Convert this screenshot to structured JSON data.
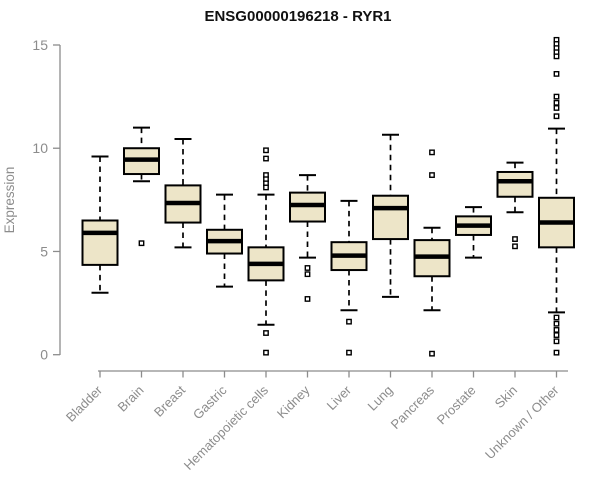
{
  "chart_data": {
    "type": "boxplot",
    "title": "ENSG00000196218 - RYR1",
    "ylabel": "Expression",
    "xlabel": "",
    "ylim": [
      0,
      15
    ],
    "yticks": [
      0,
      5,
      10,
      15
    ],
    "grid": false,
    "legend": "none",
    "colors": {
      "box_fill": "#ede5c8",
      "box_stroke": "#000000",
      "median": "#000000",
      "axis": "#8c8c8c",
      "title": "#111111"
    },
    "categories": [
      "Bladder",
      "Brain",
      "Breast",
      "Gastric",
      "Hematopoietic cells",
      "Kidney",
      "Liver",
      "Lung",
      "Pancreas",
      "Prostate",
      "Skin",
      "Unknown / Other"
    ],
    "boxes": [
      {
        "label": "Bladder",
        "low": 3.0,
        "q1": 4.35,
        "median": 5.9,
        "q3": 6.5,
        "high": 9.6,
        "outliers": []
      },
      {
        "label": "Brain",
        "low": 8.4,
        "q1": 8.75,
        "median": 9.45,
        "q3": 10.0,
        "high": 11.0,
        "outliers": [
          5.4
        ]
      },
      {
        "label": "Breast",
        "low": 5.2,
        "q1": 6.4,
        "median": 7.35,
        "q3": 8.2,
        "high": 10.45,
        "outliers": []
      },
      {
        "label": "Gastric",
        "low": 3.3,
        "q1": 4.9,
        "median": 5.5,
        "q3": 6.05,
        "high": 7.75,
        "outliers": []
      },
      {
        "label": "Hematopoietic cells",
        "low": 1.45,
        "q1": 3.6,
        "median": 4.4,
        "q3": 5.2,
        "high": 7.75,
        "outliers": [
          9.9,
          9.5,
          8.7,
          8.5,
          8.3,
          8.1,
          1.05,
          0.1
        ]
      },
      {
        "label": "Kidney",
        "low": 4.7,
        "q1": 6.45,
        "median": 7.25,
        "q3": 7.85,
        "high": 8.7,
        "outliers": [
          4.2,
          3.9,
          2.7
        ]
      },
      {
        "label": "Liver",
        "low": 2.15,
        "q1": 4.1,
        "median": 4.8,
        "q3": 5.45,
        "high": 7.45,
        "outliers": [
          1.6,
          0.1
        ]
      },
      {
        "label": "Lung",
        "low": 2.8,
        "q1": 5.6,
        "median": 7.1,
        "q3": 7.7,
        "high": 10.65,
        "outliers": []
      },
      {
        "label": "Pancreas",
        "low": 2.15,
        "q1": 3.8,
        "median": 4.75,
        "q3": 5.55,
        "high": 6.15,
        "outliers": [
          9.8,
          8.7,
          0.05
        ]
      },
      {
        "label": "Prostate",
        "low": 4.7,
        "q1": 5.8,
        "median": 6.25,
        "q3": 6.7,
        "high": 7.15,
        "outliers": []
      },
      {
        "label": "Skin",
        "low": 6.9,
        "q1": 7.65,
        "median": 8.4,
        "q3": 8.85,
        "high": 9.3,
        "outliers": [
          5.6,
          5.25
        ]
      },
      {
        "label": "Unknown / Other",
        "low": 2.05,
        "q1": 5.2,
        "median": 6.4,
        "q3": 7.6,
        "high": 10.95,
        "outliers": [
          15.25,
          15.05,
          14.85,
          14.65,
          14.45,
          13.6,
          12.5,
          12.2,
          11.95,
          11.55,
          1.8,
          1.5,
          1.2,
          0.95,
          0.65,
          0.1
        ]
      }
    ]
  }
}
